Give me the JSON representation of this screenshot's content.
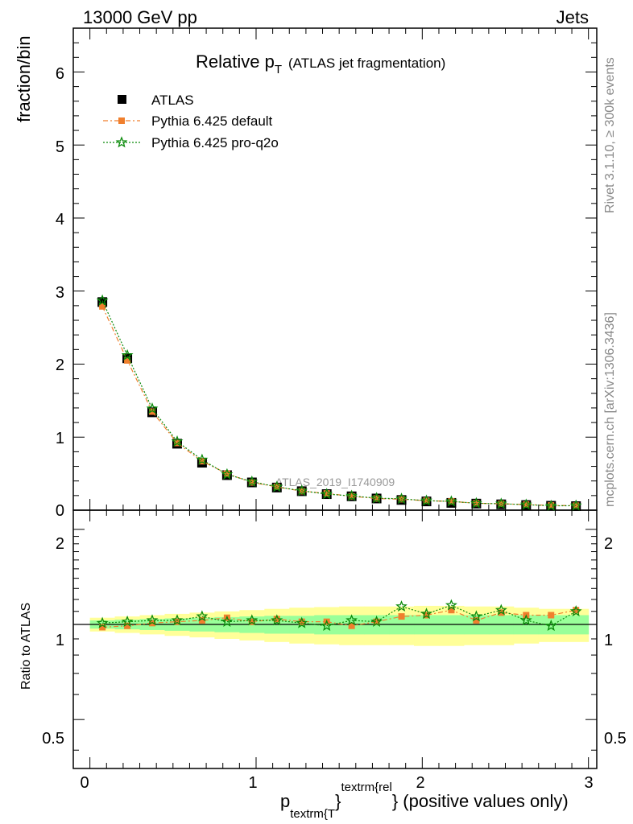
{
  "header": {
    "left": "13000 GeV pp",
    "right": "Jets"
  },
  "side_labels": {
    "rivet": "Rivet 3.1.10, ≥ 300k events",
    "mcplots": "mcplots.cern.ch [arXiv:1306.3436]"
  },
  "chart_data": {
    "type": "scatter",
    "title": {
      "main": "Relative p",
      "sub": "T",
      "suffix": "(ATLAS jet fragmentation)"
    },
    "watermark": "ATLAS_2019_I1740909",
    "ylabel": "fraction/bin",
    "ratio_ylabel": "Ratio to ATLAS",
    "xlabel": {
      "p": "p",
      "sub": "textrm{T",
      "mid": "}",
      "sup": "textrm{rel",
      "end": "} (positive values only)"
    },
    "xlim": [
      -0.1,
      3.05
    ],
    "ylim": [
      0,
      6.6
    ],
    "ratio_ylim": [
      0.35,
      2.3
    ],
    "x_ticks": [
      "0",
      "1",
      "2",
      "3"
    ],
    "y_ticks": [
      "0",
      "1",
      "2",
      "3",
      "4",
      "5",
      "6"
    ],
    "ratio_ticks": [
      "0.5",
      "1",
      "2"
    ],
    "ratio_tick_values": [
      0.5,
      1,
      2
    ],
    "legend_position": "top-left",
    "legend": [
      {
        "name": "ATLAS",
        "color": "#000000",
        "marker": "square"
      },
      {
        "name": "Pythia 6.425 default",
        "color": "#f07f2d",
        "marker": "square",
        "line": "dash-dot"
      },
      {
        "name": "Pythia 6.425 pro-q2o",
        "color": "#0a8a0a",
        "marker": "star",
        "line": "dotted"
      }
    ],
    "x": [
      0.075,
      0.225,
      0.375,
      0.525,
      0.675,
      0.825,
      0.975,
      1.125,
      1.275,
      1.425,
      1.575,
      1.725,
      1.875,
      2.025,
      2.175,
      2.325,
      2.475,
      2.625,
      2.775,
      2.925
    ],
    "bin_width": 0.15,
    "series": [
      {
        "name": "ATLAS",
        "values": [
          2.85,
          2.08,
          1.34,
          0.91,
          0.65,
          0.48,
          0.38,
          0.31,
          0.26,
          0.22,
          0.19,
          0.16,
          0.14,
          0.12,
          0.1,
          0.09,
          0.08,
          0.07,
          0.06,
          0.055
        ]
      },
      {
        "name": "Pythia 6.425 default",
        "values": [
          2.79,
          2.05,
          1.35,
          0.92,
          0.67,
          0.5,
          0.38,
          0.32,
          0.26,
          0.23,
          0.19,
          0.16,
          0.15,
          0.13,
          0.12,
          0.095,
          0.087,
          0.077,
          0.065,
          0.062
        ]
      },
      {
        "name": "Pythia 6.425 pro-q2o",
        "values": [
          2.87,
          2.12,
          1.39,
          0.94,
          0.69,
          0.49,
          0.39,
          0.32,
          0.265,
          0.22,
          0.195,
          0.165,
          0.155,
          0.13,
          0.12,
          0.095,
          0.088,
          0.075,
          0.06,
          0.062
        ]
      }
    ],
    "ratio_series": [
      {
        "name": "Pythia 6.425 default",
        "values": [
          0.98,
          0.99,
          1.01,
          1.02,
          1.03,
          1.05,
          1.02,
          1.04,
          1.02,
          1.02,
          0.99,
          1.02,
          1.06,
          1.07,
          1.11,
          1.03,
          1.09,
          1.07,
          1.07,
          1.11
        ]
      },
      {
        "name": "Pythia 6.425 pro-q2o",
        "values": [
          1.01,
          1.02,
          1.03,
          1.03,
          1.06,
          1.02,
          1.03,
          1.03,
          1.01,
          0.99,
          1.03,
          1.02,
          1.14,
          1.08,
          1.15,
          1.06,
          1.11,
          1.03,
          0.99,
          1.1
        ]
      }
    ],
    "ratio_band_inner": [
      [
        0.97,
        1.03
      ],
      [
        0.965,
        1.035
      ],
      [
        0.96,
        1.04
      ],
      [
        0.955,
        1.045
      ],
      [
        0.95,
        1.05
      ],
      [
        0.945,
        1.055
      ],
      [
        0.94,
        1.06
      ],
      [
        0.935,
        1.065
      ],
      [
        0.935,
        1.065
      ],
      [
        0.93,
        1.07
      ],
      [
        0.93,
        1.07
      ],
      [
        0.93,
        1.07
      ],
      [
        0.93,
        1.07
      ],
      [
        0.93,
        1.07
      ],
      [
        0.93,
        1.07
      ],
      [
        0.93,
        1.07
      ],
      [
        0.93,
        1.07
      ],
      [
        0.93,
        1.07
      ],
      [
        0.93,
        1.07
      ],
      [
        0.93,
        1.07
      ]
    ],
    "ratio_band_outer": [
      [
        0.95,
        1.05
      ],
      [
        0.94,
        1.06
      ],
      [
        0.93,
        1.07
      ],
      [
        0.92,
        1.08
      ],
      [
        0.91,
        1.09
      ],
      [
        0.9,
        1.1
      ],
      [
        0.89,
        1.11
      ],
      [
        0.88,
        1.12
      ],
      [
        0.87,
        1.13
      ],
      [
        0.865,
        1.135
      ],
      [
        0.86,
        1.14
      ],
      [
        0.86,
        1.14
      ],
      [
        0.86,
        1.14
      ],
      [
        0.855,
        1.145
      ],
      [
        0.855,
        1.145
      ],
      [
        0.86,
        1.14
      ],
      [
        0.86,
        1.14
      ],
      [
        0.87,
        1.13
      ],
      [
        0.88,
        1.12
      ],
      [
        0.88,
        1.12
      ]
    ]
  }
}
